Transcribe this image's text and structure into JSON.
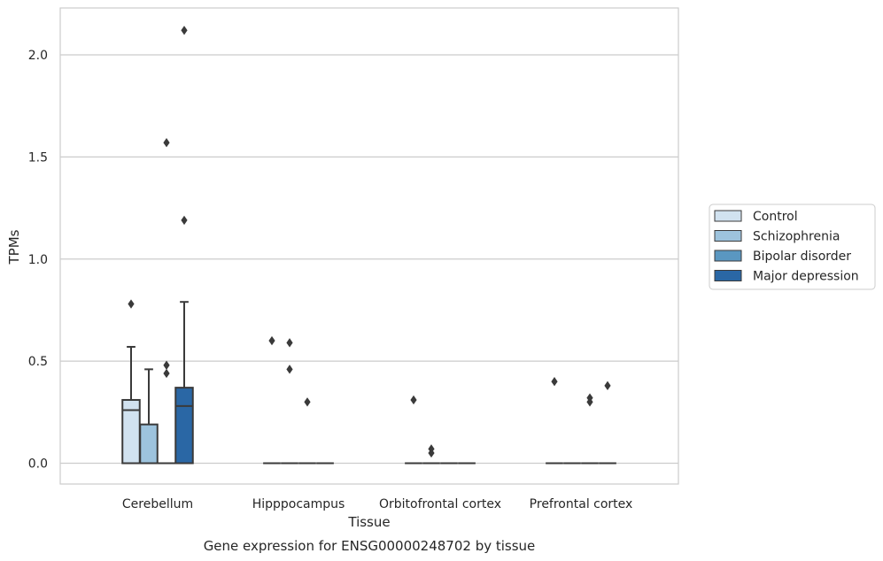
{
  "chart_data": {
    "type": "boxplot",
    "caption": "Gene expression for ENSG00000248702 by tissue",
    "xlabel": "Tissue",
    "ylabel": "TPMs",
    "ylim": [
      -0.1,
      2.23
    ],
    "yticks": [
      0.0,
      0.5,
      1.0,
      1.5,
      2.0
    ],
    "ytick_labels": [
      "0.0",
      "0.5",
      "1.0",
      "1.5",
      "2.0"
    ],
    "grid": "horizontal",
    "legend_position": "right",
    "categories": [
      "Cerebellum",
      "Hipppocampus",
      "Orbitofrontal cortex",
      "Prefrontal cortex"
    ],
    "series": [
      {
        "name": "Control",
        "color": "#d1e2f0",
        "boxes": [
          {
            "q1": 0.0,
            "median": 0.26,
            "q3": 0.31,
            "whisker_low": 0.0,
            "whisker_high": 0.57,
            "outliers": [
              0.78
            ]
          },
          {
            "q1": 0.0,
            "median": 0.0,
            "q3": 0.0,
            "whisker_low": 0.0,
            "whisker_high": 0.0,
            "outliers": [
              0.6
            ]
          },
          {
            "q1": 0.0,
            "median": 0.0,
            "q3": 0.0,
            "whisker_low": 0.0,
            "whisker_high": 0.0,
            "outliers": [
              0.31
            ]
          },
          {
            "q1": 0.0,
            "median": 0.0,
            "q3": 0.0,
            "whisker_low": 0.0,
            "whisker_high": 0.0,
            "outliers": [
              0.4
            ]
          }
        ]
      },
      {
        "name": "Schizophrenia",
        "color": "#9dc3dd",
        "boxes": [
          {
            "q1": 0.0,
            "median": 0.0,
            "q3": 0.19,
            "whisker_low": 0.0,
            "whisker_high": 0.46,
            "outliers": []
          },
          {
            "q1": 0.0,
            "median": 0.0,
            "q3": 0.0,
            "whisker_low": 0.0,
            "whisker_high": 0.0,
            "outliers": [
              0.59,
              0.46
            ]
          },
          {
            "q1": 0.0,
            "median": 0.0,
            "q3": 0.0,
            "whisker_low": 0.0,
            "whisker_high": 0.0,
            "outliers": [
              0.07,
              0.05
            ]
          },
          {
            "q1": 0.0,
            "median": 0.0,
            "q3": 0.0,
            "whisker_low": 0.0,
            "whisker_high": 0.0,
            "outliers": []
          }
        ]
      },
      {
        "name": "Bipolar disorder",
        "color": "#5a97c1",
        "boxes": [
          {
            "q1": 0.0,
            "median": 0.0,
            "q3": 0.0,
            "whisker_low": 0.0,
            "whisker_high": 0.0,
            "outliers": [
              1.57,
              0.48,
              0.44
            ]
          },
          {
            "q1": 0.0,
            "median": 0.0,
            "q3": 0.0,
            "whisker_low": 0.0,
            "whisker_high": 0.0,
            "outliers": [
              0.3
            ]
          },
          {
            "q1": 0.0,
            "median": 0.0,
            "q3": 0.0,
            "whisker_low": 0.0,
            "whisker_high": 0.0,
            "outliers": []
          },
          {
            "q1": 0.0,
            "median": 0.0,
            "q3": 0.0,
            "whisker_low": 0.0,
            "whisker_high": 0.0,
            "outliers": [
              0.32,
              0.3
            ]
          }
        ]
      },
      {
        "name": "Major depression",
        "color": "#2a67a5",
        "boxes": [
          {
            "q1": 0.0,
            "median": 0.28,
            "q3": 0.37,
            "whisker_low": 0.0,
            "whisker_high": 0.79,
            "outliers": [
              2.12,
              1.19
            ]
          },
          {
            "q1": 0.0,
            "median": 0.0,
            "q3": 0.0,
            "whisker_low": 0.0,
            "whisker_high": 0.0,
            "outliers": []
          },
          {
            "q1": 0.0,
            "median": 0.0,
            "q3": 0.0,
            "whisker_low": 0.0,
            "whisker_high": 0.0,
            "outliers": []
          },
          {
            "q1": 0.0,
            "median": 0.0,
            "q3": 0.0,
            "whisker_low": 0.0,
            "whisker_high": 0.0,
            "outliers": [
              0.38
            ]
          }
        ]
      }
    ]
  }
}
